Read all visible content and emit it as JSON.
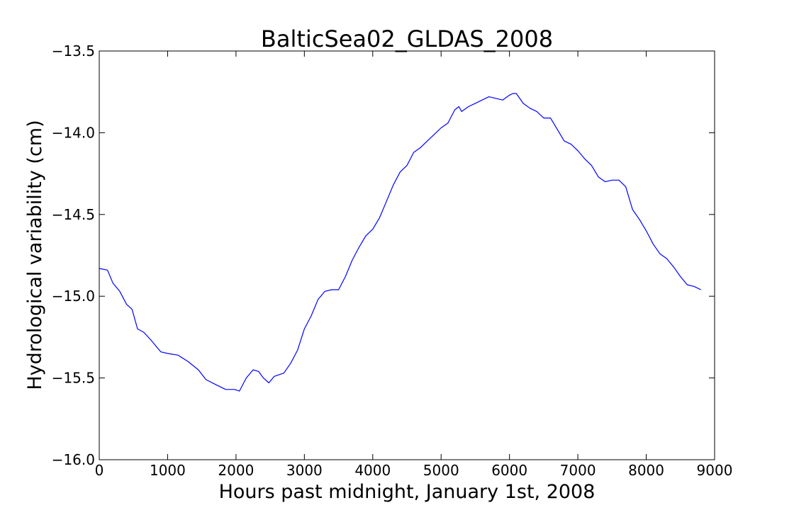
{
  "chart_data": {
    "type": "line",
    "title": "BalticSea02_GLDAS_2008",
    "xlabel": "Hours past midnight, January 1st, 2008",
    "ylabel": "Hydrological variability (cm)",
    "xlim": [
      0,
      9000
    ],
    "ylim": [
      -16.0,
      -13.5
    ],
    "xticks": [
      0,
      1000,
      2000,
      3000,
      4000,
      5000,
      6000,
      7000,
      8000,
      9000
    ],
    "xtick_labels": [
      "0",
      "1000",
      "2000",
      "3000",
      "4000",
      "5000",
      "6000",
      "7000",
      "8000",
      "9000"
    ],
    "yticks": [
      -16.0,
      -15.5,
      -15.0,
      -14.5,
      -14.0,
      -13.5
    ],
    "ytick_labels": [
      "−16.0",
      "−15.5",
      "−15.0",
      "−14.5",
      "−14.0",
      "−13.5"
    ],
    "grid": false,
    "series": [
      {
        "color": "#0000ff",
        "x": [
          0,
          120,
          200,
          300,
          400,
          480,
          560,
          650,
          760,
          900,
          1000,
          1150,
          1300,
          1450,
          1560,
          1700,
          1850,
          1980,
          2050,
          2150,
          2250,
          2330,
          2400,
          2480,
          2560,
          2700,
          2800,
          2900,
          3000,
          3100,
          3200,
          3300,
          3400,
          3500,
          3600,
          3700,
          3800,
          3900,
          4000,
          4100,
          4200,
          4300,
          4400,
          4500,
          4600,
          4700,
          4800,
          4900,
          5000,
          5100,
          5200,
          5260,
          5300,
          5400,
          5500,
          5600,
          5700,
          5800,
          5900,
          6000,
          6050,
          6100,
          6200,
          6300,
          6400,
          6500,
          6600,
          6700,
          6800,
          6900,
          7000,
          7100,
          7200,
          7300,
          7400,
          7500,
          7600,
          7700,
          7800,
          7900,
          8000,
          8100,
          8200,
          8300,
          8400,
          8500,
          8600,
          8700,
          8800
        ],
        "y": [
          -14.83,
          -14.84,
          -14.92,
          -14.97,
          -15.05,
          -15.08,
          -15.2,
          -15.22,
          -15.27,
          -15.34,
          -15.35,
          -15.36,
          -15.4,
          -15.45,
          -15.51,
          -15.54,
          -15.57,
          -15.57,
          -15.58,
          -15.5,
          -15.45,
          -15.46,
          -15.5,
          -15.53,
          -15.49,
          -15.47,
          -15.41,
          -15.33,
          -15.2,
          -15.12,
          -15.02,
          -14.97,
          -14.96,
          -14.96,
          -14.88,
          -14.78,
          -14.7,
          -14.63,
          -14.59,
          -14.52,
          -14.42,
          -14.32,
          -14.24,
          -14.2,
          -14.12,
          -14.09,
          -14.05,
          -14.01,
          -13.97,
          -13.94,
          -13.86,
          -13.84,
          -13.87,
          -13.84,
          -13.82,
          -13.8,
          -13.78,
          -13.79,
          -13.8,
          -13.77,
          -13.76,
          -13.76,
          -13.82,
          -13.85,
          -13.87,
          -13.91,
          -13.91,
          -13.98,
          -14.05,
          -14.07,
          -14.11,
          -14.16,
          -14.2,
          -14.27,
          -14.3,
          -14.29,
          -14.29,
          -14.33,
          -14.47,
          -14.53,
          -14.6,
          -14.68,
          -14.74,
          -14.77,
          -14.82,
          -14.88,
          -14.93,
          -14.94,
          -14.96
        ]
      }
    ]
  }
}
